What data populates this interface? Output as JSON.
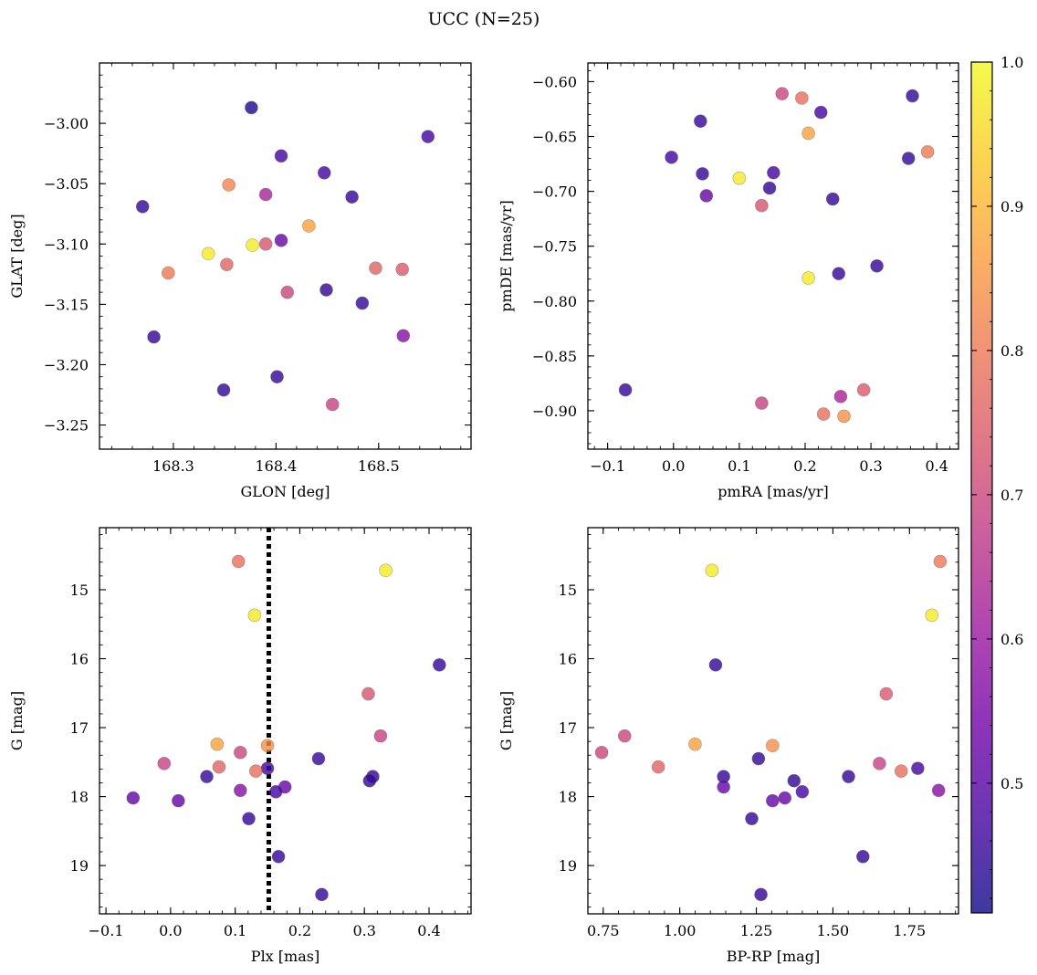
{
  "figure": {
    "title": "UCC (N=25)"
  },
  "colorbar": {
    "min": 0.41,
    "max": 1.0,
    "ticks": [
      0.5,
      0.6,
      0.7,
      0.8,
      0.9,
      1.0
    ],
    "tick_labels": [
      "0.5",
      "0.6",
      "0.7",
      "0.8",
      "0.9",
      "1.0"
    ],
    "colormap": "plasma",
    "colormap_stops": [
      "#0d0887",
      "#46039f",
      "#7201a8",
      "#9c179e",
      "#bd3786",
      "#d8576b",
      "#ed7953",
      "#fb9f3a",
      "#fdca26",
      "#f0f921"
    ],
    "marker_alpha": 0.8
  },
  "chart_data": [
    {
      "type": "scatter",
      "xlabel": "GLON [deg]",
      "ylabel": "GLAT [deg]",
      "xlim": [
        168.228,
        168.59
      ],
      "ylim": [
        -3.27,
        -2.95
      ],
      "xticks": [
        168.3,
        168.4,
        168.5
      ],
      "xtick_labels": [
        "168.3",
        "168.4",
        "168.5"
      ],
      "yticks": [
        -3.0,
        -3.05,
        -3.1,
        -3.15,
        -3.2,
        -3.25
      ],
      "ytick_labels": [
        "−3.00",
        "−3.05",
        "−3.10",
        "−3.15",
        "−3.20",
        "−3.25"
      ],
      "inverted_y": false,
      "points": [
        {
          "x": 168.376,
          "y": -2.987,
          "c": 0.43
        },
        {
          "x": 168.548,
          "y": -3.011,
          "c": 0.47
        },
        {
          "x": 168.405,
          "y": -3.027,
          "c": 0.47
        },
        {
          "x": 168.447,
          "y": -3.041,
          "c": 0.47
        },
        {
          "x": 168.354,
          "y": -3.051,
          "c": 0.82
        },
        {
          "x": 168.39,
          "y": -3.059,
          "c": 0.63
        },
        {
          "x": 168.474,
          "y": -3.061,
          "c": 0.45
        },
        {
          "x": 168.27,
          "y": -3.069,
          "c": 0.45
        },
        {
          "x": 168.432,
          "y": -3.085,
          "c": 0.87
        },
        {
          "x": 168.405,
          "y": -3.097,
          "c": 0.52
        },
        {
          "x": 168.39,
          "y": -3.1,
          "c": 0.73
        },
        {
          "x": 168.377,
          "y": -3.101,
          "c": 0.98
        },
        {
          "x": 168.334,
          "y": -3.108,
          "c": 0.98
        },
        {
          "x": 168.352,
          "y": -3.117,
          "c": 0.76
        },
        {
          "x": 168.497,
          "y": -3.12,
          "c": 0.76
        },
        {
          "x": 168.523,
          "y": -3.121,
          "c": 0.74
        },
        {
          "x": 168.295,
          "y": -3.124,
          "c": 0.8
        },
        {
          "x": 168.411,
          "y": -3.14,
          "c": 0.7
        },
        {
          "x": 168.449,
          "y": -3.138,
          "c": 0.45
        },
        {
          "x": 168.484,
          "y": -3.149,
          "c": 0.45
        },
        {
          "x": 168.524,
          "y": -3.176,
          "c": 0.57
        },
        {
          "x": 168.281,
          "y": -3.177,
          "c": 0.45
        },
        {
          "x": 168.401,
          "y": -3.21,
          "c": 0.45
        },
        {
          "x": 168.349,
          "y": -3.221,
          "c": 0.45
        },
        {
          "x": 168.455,
          "y": -3.233,
          "c": 0.69
        }
      ]
    },
    {
      "type": "scatter",
      "xlabel": "pmRA [mas/yr]",
      "ylabel": "pmDE [mas/yr]",
      "xlim": [
        -0.13,
        0.433
      ],
      "ylim": [
        -0.935,
        -0.583
      ],
      "xticks": [
        -0.1,
        0.0,
        0.1,
        0.2,
        0.3,
        0.4
      ],
      "xtick_labels": [
        "−0.1",
        "0.0",
        "0.1",
        "0.2",
        "0.3",
        "0.4"
      ],
      "yticks": [
        -0.6,
        -0.65,
        -0.7,
        -0.75,
        -0.8,
        -0.85,
        -0.9
      ],
      "ytick_labels": [
        "−0.60",
        "−0.65",
        "−0.70",
        "−0.75",
        "−0.80",
        "−0.85",
        "−0.90"
      ],
      "inverted_y": false,
      "points": [
        {
          "x": 0.165,
          "y": -0.611,
          "c": 0.7
        },
        {
          "x": 0.195,
          "y": -0.615,
          "c": 0.78
        },
        {
          "x": 0.363,
          "y": -0.613,
          "c": 0.45
        },
        {
          "x": 0.224,
          "y": -0.628,
          "c": 0.47
        },
        {
          "x": 0.041,
          "y": -0.636,
          "c": 0.45
        },
        {
          "x": 0.205,
          "y": -0.647,
          "c": 0.87
        },
        {
          "x": 0.386,
          "y": -0.664,
          "c": 0.8
        },
        {
          "x": -0.003,
          "y": -0.669,
          "c": 0.47
        },
        {
          "x": 0.357,
          "y": -0.67,
          "c": 0.45
        },
        {
          "x": 0.044,
          "y": -0.684,
          "c": 0.45
        },
        {
          "x": 0.152,
          "y": -0.683,
          "c": 0.47
        },
        {
          "x": 0.1,
          "y": -0.688,
          "c": 0.98
        },
        {
          "x": 0.146,
          "y": -0.697,
          "c": 0.45
        },
        {
          "x": 0.05,
          "y": -0.704,
          "c": 0.52
        },
        {
          "x": 0.242,
          "y": -0.707,
          "c": 0.45
        },
        {
          "x": 0.134,
          "y": -0.713,
          "c": 0.73
        },
        {
          "x": 0.309,
          "y": -0.768,
          "c": 0.45
        },
        {
          "x": 0.251,
          "y": -0.775,
          "c": 0.45
        },
        {
          "x": 0.205,
          "y": -0.779,
          "c": 0.98
        },
        {
          "x": -0.073,
          "y": -0.881,
          "c": 0.45
        },
        {
          "x": 0.289,
          "y": -0.881,
          "c": 0.74
        },
        {
          "x": 0.254,
          "y": -0.887,
          "c": 0.63
        },
        {
          "x": 0.134,
          "y": -0.893,
          "c": 0.69
        },
        {
          "x": 0.228,
          "y": -0.903,
          "c": 0.78
        },
        {
          "x": 0.259,
          "y": -0.905,
          "c": 0.84
        }
      ]
    },
    {
      "type": "scatter",
      "xlabel": "Plx [mas]",
      "ylabel": "G [mag]",
      "xlim": [
        -0.11,
        0.465
      ],
      "ylim": [
        19.7,
        14.1
      ],
      "xticks": [
        -0.1,
        0.0,
        0.1,
        0.2,
        0.3,
        0.4
      ],
      "xtick_labels": [
        "−0.1",
        "0.0",
        "0.1",
        "0.2",
        "0.3",
        "0.4"
      ],
      "yticks": [
        15,
        16,
        17,
        18,
        19
      ],
      "ytick_labels": [
        "15",
        "16",
        "17",
        "18",
        "19"
      ],
      "inverted_y": true,
      "vline": {
        "x": 0.152,
        "style": "dotted",
        "color": "#000000"
      },
      "points": [
        {
          "x": 0.105,
          "y": 14.59,
          "c": 0.78
        },
        {
          "x": 0.333,
          "y": 14.72,
          "c": 0.98
        },
        {
          "x": 0.13,
          "y": 15.37,
          "c": 0.98
        },
        {
          "x": 0.416,
          "y": 16.09,
          "c": 0.45
        },
        {
          "x": 0.306,
          "y": 16.51,
          "c": 0.73
        },
        {
          "x": 0.325,
          "y": 17.12,
          "c": 0.69
        },
        {
          "x": 0.072,
          "y": 17.24,
          "c": 0.87
        },
        {
          "x": 0.15,
          "y": 17.26,
          "c": 0.84
        },
        {
          "x": 0.108,
          "y": 17.36,
          "c": 0.7
        },
        {
          "x": 0.229,
          "y": 17.45,
          "c": 0.45
        },
        {
          "x": -0.01,
          "y": 17.52,
          "c": 0.69
        },
        {
          "x": 0.075,
          "y": 17.57,
          "c": 0.76
        },
        {
          "x": 0.15,
          "y": 17.59,
          "c": 0.47
        },
        {
          "x": 0.132,
          "y": 17.63,
          "c": 0.78
        },
        {
          "x": 0.056,
          "y": 17.71,
          "c": 0.45
        },
        {
          "x": 0.313,
          "y": 17.71,
          "c": 0.45
        },
        {
          "x": 0.308,
          "y": 17.77,
          "c": 0.45
        },
        {
          "x": 0.177,
          "y": 17.86,
          "c": 0.52
        },
        {
          "x": 0.108,
          "y": 17.91,
          "c": 0.57
        },
        {
          "x": 0.163,
          "y": 17.93,
          "c": 0.47
        },
        {
          "x": -0.058,
          "y": 18.02,
          "c": 0.52
        },
        {
          "x": 0.012,
          "y": 18.06,
          "c": 0.52
        },
        {
          "x": 0.121,
          "y": 18.32,
          "c": 0.45
        },
        {
          "x": 0.167,
          "y": 18.87,
          "c": 0.45
        },
        {
          "x": 0.234,
          "y": 19.42,
          "c": 0.45
        }
      ]
    },
    {
      "type": "scatter",
      "xlabel": "BP-RP [mag]",
      "ylabel": "G [mag]",
      "xlim": [
        0.7,
        1.91
      ],
      "ylim": [
        19.7,
        14.1
      ],
      "xticks": [
        0.75,
        1.0,
        1.25,
        1.5,
        1.75
      ],
      "xtick_labels": [
        "0.75",
        "1.00",
        "1.25",
        "1.50",
        "1.75"
      ],
      "yticks": [
        15,
        16,
        17,
        18,
        19
      ],
      "ytick_labels": [
        "15",
        "16",
        "17",
        "18",
        "19"
      ],
      "inverted_y": true,
      "points": [
        {
          "x": 1.85,
          "y": 14.59,
          "c": 0.8
        },
        {
          "x": 1.105,
          "y": 14.72,
          "c": 0.98
        },
        {
          "x": 1.823,
          "y": 15.37,
          "c": 0.98
        },
        {
          "x": 1.117,
          "y": 16.09,
          "c": 0.45
        },
        {
          "x": 1.674,
          "y": 16.51,
          "c": 0.74
        },
        {
          "x": 0.82,
          "y": 17.12,
          "c": 0.7
        },
        {
          "x": 1.05,
          "y": 17.24,
          "c": 0.87
        },
        {
          "x": 1.303,
          "y": 17.26,
          "c": 0.84
        },
        {
          "x": 0.745,
          "y": 17.36,
          "c": 0.7
        },
        {
          "x": 1.257,
          "y": 17.45,
          "c": 0.45
        },
        {
          "x": 1.652,
          "y": 17.52,
          "c": 0.69
        },
        {
          "x": 0.93,
          "y": 17.57,
          "c": 0.76
        },
        {
          "x": 1.777,
          "y": 17.59,
          "c": 0.47
        },
        {
          "x": 1.723,
          "y": 17.63,
          "c": 0.78
        },
        {
          "x": 1.143,
          "y": 17.71,
          "c": 0.45
        },
        {
          "x": 1.551,
          "y": 17.71,
          "c": 0.45
        },
        {
          "x": 1.373,
          "y": 17.77,
          "c": 0.45
        },
        {
          "x": 1.143,
          "y": 17.86,
          "c": 0.52
        },
        {
          "x": 1.845,
          "y": 17.91,
          "c": 0.57
        },
        {
          "x": 1.4,
          "y": 17.93,
          "c": 0.47
        },
        {
          "x": 1.343,
          "y": 18.02,
          "c": 0.52
        },
        {
          "x": 1.303,
          "y": 18.06,
          "c": 0.52
        },
        {
          "x": 1.235,
          "y": 18.32,
          "c": 0.45
        },
        {
          "x": 1.598,
          "y": 18.87,
          "c": 0.45
        },
        {
          "x": 1.265,
          "y": 19.42,
          "c": 0.45
        }
      ]
    }
  ]
}
